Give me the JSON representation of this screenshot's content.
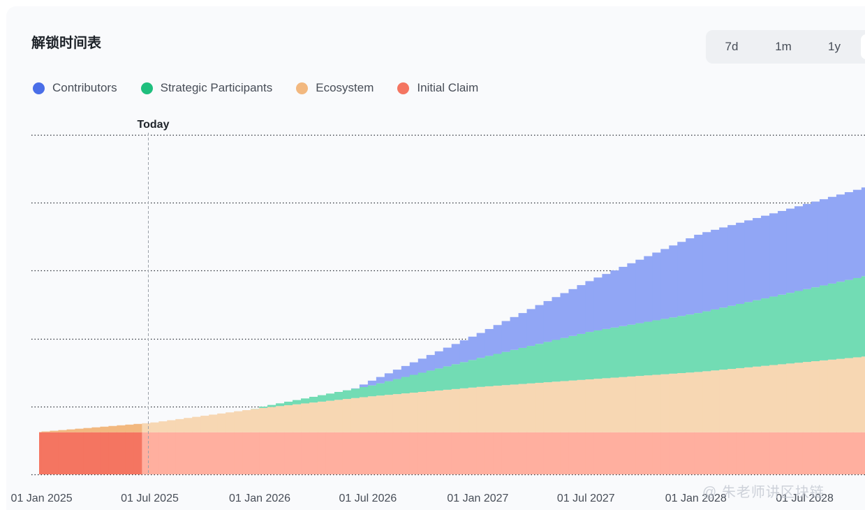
{
  "header": {
    "title": "解锁时间表"
  },
  "range_tabs": [
    {
      "label": "7d"
    },
    {
      "label": "1m"
    },
    {
      "label": "1y"
    }
  ],
  "legend": [
    {
      "label": "Contributors",
      "color": "#4a6ee8"
    },
    {
      "label": "Strategic Participants",
      "color": "#1fbf7e"
    },
    {
      "label": "Ecosystem",
      "color": "#f2b87f"
    },
    {
      "label": "Initial Claim",
      "color": "#f47561"
    }
  ],
  "watermark": "@ 朱老师讲区块链",
  "chart_data": {
    "type": "area",
    "stacked": true,
    "stepped": true,
    "title": "解锁时间表",
    "today_label": "Today",
    "today_date": "2025-06-28",
    "x_tick_labels": [
      "01 Jan 2025",
      "01 Jul 2025",
      "01 Jan 2026",
      "01 Jul 2026",
      "01 Jan 2027",
      "01 Jul 2027",
      "01 Jan 2028",
      "01 Jul 2028"
    ],
    "x_ticks": [
      "2025-01-01",
      "2025-07-01",
      "2026-01-01",
      "2026-07-01",
      "2027-01-01",
      "2027-07-01",
      "2028-01-01",
      "2028-07-01"
    ],
    "x_range": [
      "2024-12-15",
      "2028-10-10"
    ],
    "ylim": [
      0,
      5
    ],
    "y_gridlines": [
      0,
      1,
      2,
      3,
      4,
      5
    ],
    "y_tick_labels_visible": false,
    "grid": true,
    "legend_placement": "top-left",
    "series": [
      {
        "name": "Initial Claim",
        "color": "#f47561",
        "faded_color": "#ffaf9f",
        "points": [
          [
            "2024-12-15",
            0.62
          ],
          [
            "2028-10-10",
            0.62
          ]
        ]
      },
      {
        "name": "Ecosystem",
        "color": "#f2b87f",
        "faded_color": "#f7d7b3",
        "points": [
          [
            "2024-12-15",
            0.0
          ],
          [
            "2025-06-28",
            0.14
          ],
          [
            "2026-01-01",
            0.36
          ],
          [
            "2026-07-01",
            0.53
          ],
          [
            "2027-01-01",
            0.67
          ],
          [
            "2027-07-01",
            0.78
          ],
          [
            "2028-01-01",
            0.89
          ],
          [
            "2028-10-10",
            1.12
          ]
        ]
      },
      {
        "name": "Strategic Participants",
        "color": "#1fbf7e",
        "faded_color": "#72dcb4",
        "points": [
          [
            "2024-12-15",
            0.0
          ],
          [
            "2025-12-15",
            0.0
          ],
          [
            "2026-01-01",
            0.02
          ],
          [
            "2026-07-01",
            0.16
          ],
          [
            "2027-01-01",
            0.43
          ],
          [
            "2027-07-01",
            0.7
          ],
          [
            "2028-01-01",
            0.87
          ],
          [
            "2028-10-10",
            1.19
          ]
        ]
      },
      {
        "name": "Contributors",
        "color": "#4a6ee8",
        "faded_color": "#91a6f5",
        "points": [
          [
            "2024-12-15",
            0.0
          ],
          [
            "2026-06-01",
            0.0
          ],
          [
            "2026-07-01",
            0.07
          ],
          [
            "2027-01-01",
            0.37
          ],
          [
            "2027-07-01",
            0.75
          ],
          [
            "2028-01-01",
            1.16
          ],
          [
            "2028-10-10",
            1.31
          ]
        ]
      }
    ]
  }
}
